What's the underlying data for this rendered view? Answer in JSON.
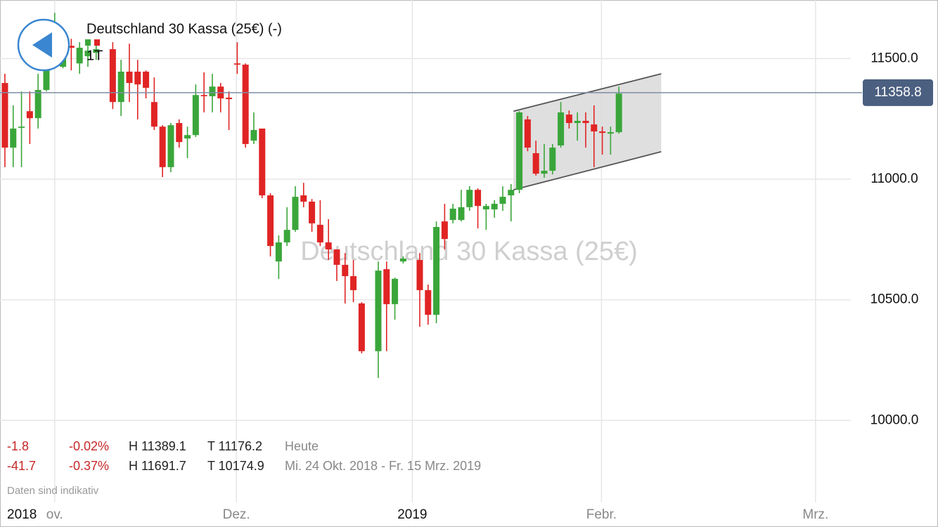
{
  "chart_data": {
    "type": "candlestick",
    "title": "Deutschland 30 Kassa (25€) (-)",
    "interval": "1T",
    "watermark": "Deutschland 30 Kassa (25€)",
    "year_label": "2018",
    "x": [
      0,
      1,
      2,
      3,
      4,
      5,
      6,
      7,
      8,
      9,
      10,
      11,
      13,
      14,
      15,
      16,
      17,
      18,
      19,
      20,
      21,
      22,
      23,
      24,
      25,
      26,
      27,
      28,
      29,
      30,
      31,
      32,
      33,
      34,
      35,
      36,
      37,
      38,
      39,
      40,
      41,
      42,
      43,
      45,
      46,
      47,
      48,
      50,
      51,
      52,
      53,
      54,
      55,
      56,
      57,
      58,
      59,
      60,
      61,
      62,
      63,
      64,
      65,
      66,
      67,
      68,
      69,
      70,
      71,
      72,
      73,
      74
    ],
    "open": [
      11399,
      11131,
      11213,
      11282,
      11253,
      11370,
      11510,
      11466,
      11553,
      11480,
      11510,
      11524,
      11539,
      11320,
      11446,
      11446,
      11446,
      11320,
      11218,
      11050,
      11233,
      11169,
      11183,
      11349,
      11344,
      11384,
      11338,
      11480,
      11475,
      11160,
      11210,
      10933,
      10659,
      10738,
      10790,
      10933,
      10907,
      10811,
      10738,
      10709,
      10645,
      10598,
      10485,
      10287,
      10627,
      10482,
      10659,
      10665,
      10540,
      10438,
      10825,
      10831,
      10831,
      10884,
      10956,
      10875,
      10875,
      10898,
      10933,
      10956,
      11248,
      11108,
      11023,
      11035,
      11140,
      11268,
      11233,
      11242,
      11227,
      11198,
      11189,
      11195
    ],
    "high": [
      11437,
      11306,
      11364,
      11364,
      11437,
      11539,
      11690,
      11626,
      11582,
      11568,
      11553,
      11568,
      11568,
      11495,
      11562,
      11495,
      11451,
      11422,
      11224,
      11233,
      11248,
      11218,
      11393,
      11443,
      11437,
      11399,
      11364,
      11568,
      11480,
      11277,
      11210,
      10942,
      10767,
      10884,
      10971,
      10985,
      10918,
      10913,
      10834,
      10709,
      10694,
      10665,
      10490,
      10659,
      10659,
      10592,
      10680,
      10694,
      10563,
      10825,
      10898,
      10898,
      10956,
      10971,
      10962,
      10898,
      10913,
      10971,
      10980,
      11282,
      11262,
      11160,
      11146,
      11146,
      11320,
      11285,
      11277,
      11277,
      11306,
      11218,
      11218,
      11384
    ],
    "low": [
      11050,
      11050,
      11050,
      11146,
      11210,
      11364,
      11466,
      11460,
      11451,
      11437,
      11466,
      11495,
      11291,
      11262,
      11320,
      11248,
      11335,
      11204,
      11009,
      11029,
      11131,
      11087,
      11175,
      11277,
      11277,
      11277,
      11204,
      11437,
      11131,
      11146,
      10921,
      10680,
      10586,
      10723,
      10782,
      10884,
      10782,
      10723,
      10665,
      10578,
      10485,
      10490,
      10278,
      10176,
      10287,
      10418,
      10651,
      10388,
      10397,
      10403,
      10709,
      10817,
      10825,
      10869,
      10796,
      10790,
      10840,
      10869,
      10825,
      10942,
      11116,
      11015,
      11006,
      11020,
      11131,
      11210,
      11160,
      11131,
      11050,
      11102,
      11102,
      11189
    ],
    "close": [
      11131,
      11210,
      11218,
      11253,
      11370,
      11510,
      11545,
      11545,
      11545,
      11545,
      11533,
      11539,
      11320,
      11446,
      11399,
      11393,
      11379,
      11218,
      11050,
      11224,
      11154,
      11183,
      11349,
      11344,
      11384,
      11335,
      11332,
      11475,
      11146,
      11204,
      10933,
      10723,
      10738,
      10790,
      10927,
      10907,
      10817,
      10738,
      10709,
      10645,
      10598,
      10540,
      10287,
      10621,
      10482,
      10587,
      10671,
      10540,
      10438,
      10802,
      10752,
      10878,
      10884,
      10956,
      10889,
      10889,
      10898,
      10927,
      10956,
      11277,
      11131,
      11023,
      11035,
      11131,
      11277,
      11233,
      11242,
      11233,
      11198,
      11192,
      11195,
      11355
    ],
    "up_color": "#3aa63a",
    "down_color": "#e02424",
    "xlim": [
      -0.59,
      101.95
    ],
    "ylim": [
      9660,
      11743
    ],
    "yticks": [
      {
        "value": 10000,
        "label": "10000.0"
      },
      {
        "value": 10500,
        "label": "10500.0"
      },
      {
        "value": 11000,
        "label": "11000.0"
      },
      {
        "value": 11500,
        "label": "11500.0"
      }
    ],
    "xticks": [
      {
        "value": 6,
        "label": "ov."
      },
      {
        "value": 27.9,
        "label": "Dez."
      },
      {
        "value": 49.1,
        "label": "2019"
      },
      {
        "value": 71.9,
        "label": "Febr."
      },
      {
        "value": 97.7,
        "label": "Mrz."
      }
    ],
    "grid": true,
    "last_price": 11358.8,
    "channel": {
      "x": [
        61.3,
        79.1
      ],
      "upper": [
        11282,
        11437
      ],
      "lower": [
        10956,
        11114
      ]
    }
  },
  "stats": {
    "rows": [
      [
        "-1.8",
        "-0.02%",
        "H 11389.1",
        "T 11176.2",
        "Heute"
      ],
      [
        "-41.7",
        "-0.37%",
        "H 11691.7",
        "T 10174.9",
        "Mi. 24 Okt. 2018 - Fr. 15 Mrz. 2019"
      ]
    ],
    "note": "Daten sind indikativ"
  }
}
